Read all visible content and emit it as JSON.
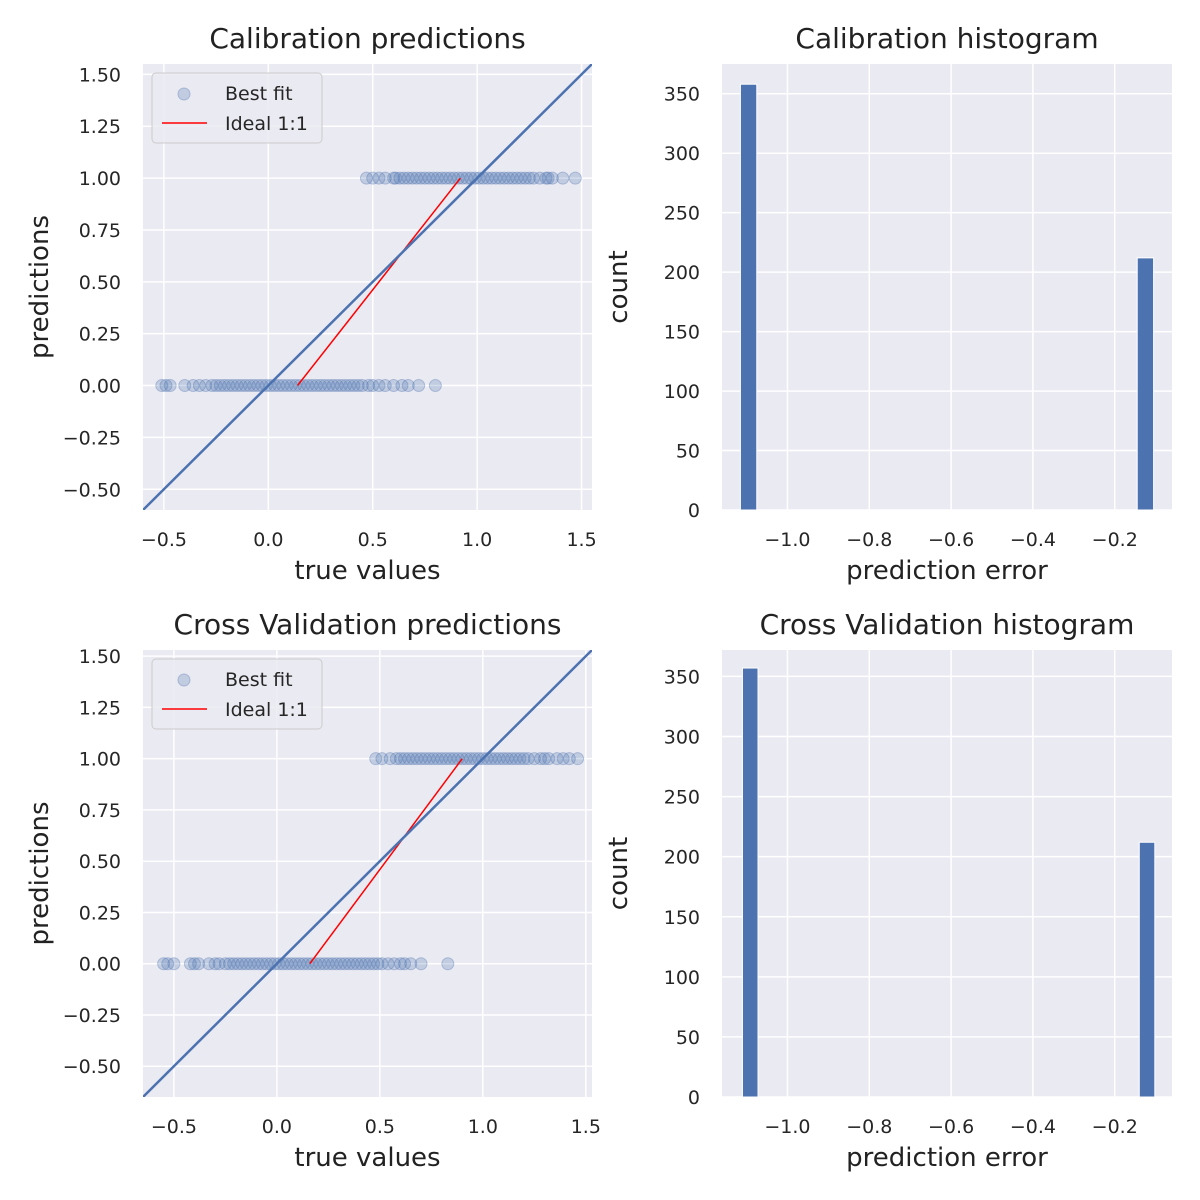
{
  "chart_data": [
    {
      "type": "scatter",
      "title": "Calibration predictions",
      "xlabel": "true values",
      "ylabel": "predictions",
      "xlim": [
        -0.6,
        1.55
      ],
      "ylim": [
        -0.6,
        1.55
      ],
      "xticks": [
        -0.5,
        0.0,
        0.5,
        1.0,
        1.5
      ],
      "yticks": [
        -0.5,
        -0.25,
        0.0,
        0.25,
        0.5,
        0.75,
        1.0,
        1.25,
        1.5
      ],
      "xtick_labels": [
        "−0.5",
        "0.0",
        "0.5",
        "1.0",
        "1.5"
      ],
      "ytick_labels": [
        "−0.50",
        "−0.25",
        "0.00",
        "0.25",
        "0.50",
        "0.75",
        "1.00",
        "1.25",
        "1.50"
      ],
      "grid": true,
      "legend": {
        "placement": "top-left",
        "entries": [
          "Best fit",
          "Ideal 1:1"
        ]
      },
      "series": [
        {
          "name": "Best fit",
          "kind": "scatter",
          "color": "#4c72b0",
          "x": [
            -0.51,
            -0.49,
            -0.47,
            -0.4,
            -0.36,
            -0.33,
            -0.3,
            -0.27,
            -0.25,
            -0.23,
            -0.21,
            -0.19,
            -0.17,
            -0.15,
            -0.13,
            -0.11,
            -0.09,
            -0.07,
            -0.05,
            -0.03,
            -0.01,
            0.01,
            0.03,
            0.05,
            0.07,
            0.09,
            0.11,
            0.13,
            0.15,
            0.17,
            0.19,
            0.21,
            0.23,
            0.25,
            0.27,
            0.29,
            0.31,
            0.33,
            0.35,
            0.37,
            0.39,
            0.41,
            0.43,
            0.45,
            0.48,
            0.5,
            0.53,
            0.56,
            0.6,
            0.64,
            0.67,
            0.72,
            0.8,
            0.47,
            0.5,
            0.53,
            0.56,
            0.6,
            0.61,
            0.63,
            0.65,
            0.67,
            0.69,
            0.71,
            0.73,
            0.75,
            0.77,
            0.79,
            0.81,
            0.83,
            0.85,
            0.87,
            0.89,
            0.91,
            0.93,
            0.95,
            0.97,
            0.99,
            1.01,
            1.03,
            1.05,
            1.07,
            1.09,
            1.11,
            1.13,
            1.15,
            1.17,
            1.19,
            1.21,
            1.23,
            1.25,
            1.27,
            1.3,
            1.33,
            1.34,
            1.36,
            1.41,
            1.47
          ],
          "y": [
            0,
            0,
            0,
            0,
            0,
            0,
            0,
            0,
            0,
            0,
            0,
            0,
            0,
            0,
            0,
            0,
            0,
            0,
            0,
            0,
            0,
            0,
            0,
            0,
            0,
            0,
            0,
            0,
            0,
            0,
            0,
            0,
            0,
            0,
            0,
            0,
            0,
            0,
            0,
            0,
            0,
            0,
            0,
            0,
            0,
            0,
            0,
            0,
            0,
            0,
            0,
            0,
            0,
            1,
            1,
            1,
            1,
            1,
            1,
            1,
            1,
            1,
            1,
            1,
            1,
            1,
            1,
            1,
            1,
            1,
            1,
            1,
            1,
            1,
            1,
            1,
            1,
            1,
            1,
            1,
            1,
            1,
            1,
            1,
            1,
            1,
            1,
            1,
            1,
            1,
            1,
            1,
            1,
            1,
            1,
            1,
            1,
            1
          ]
        },
        {
          "name": "Ideal 1:1",
          "kind": "line",
          "color": "#ff0000",
          "x": [
            0.14,
            0.92
          ],
          "y": [
            0.0,
            1.0
          ]
        },
        {
          "kind": "line",
          "color": "#4c72b0",
          "x": [
            -0.6,
            1.55
          ],
          "y": [
            -0.6,
            1.55
          ]
        }
      ]
    },
    {
      "type": "bar",
      "title": "Calibration histogram",
      "xlabel": "prediction error",
      "ylabel": "count",
      "xlim": [
        -1.16,
        -0.06
      ],
      "ylim": [
        0,
        375
      ],
      "xticks": [
        -1.0,
        -0.8,
        -0.6,
        -0.4,
        -0.2
      ],
      "yticks": [
        0,
        50,
        100,
        150,
        200,
        250,
        300,
        350
      ],
      "xtick_labels": [
        "−1.0",
        "−0.8",
        "−0.6",
        "−0.4",
        "−0.2"
      ],
      "ytick_labels": [
        "0",
        "50",
        "100",
        "150",
        "200",
        "250",
        "300",
        "350"
      ],
      "grid": true,
      "color": "#4c72b0",
      "bars": [
        {
          "x0": -1.115,
          "x1": -1.075,
          "value": 358
        },
        {
          "x0": -0.145,
          "x1": -0.105,
          "value": 212
        }
      ]
    },
    {
      "type": "scatter",
      "title": "Cross Validation predictions",
      "xlabel": "true values",
      "ylabel": "predictions",
      "xlim": [
        -0.65,
        1.53
      ],
      "ylim": [
        -0.65,
        1.53
      ],
      "xticks": [
        -0.5,
        0.0,
        0.5,
        1.0,
        1.5
      ],
      "yticks": [
        -0.5,
        -0.25,
        0.0,
        0.25,
        0.5,
        0.75,
        1.0,
        1.25,
        1.5
      ],
      "xtick_labels": [
        "−0.5",
        "0.0",
        "0.5",
        "1.0",
        "1.5"
      ],
      "ytick_labels": [
        "−0.50",
        "−0.25",
        "0.00",
        "0.25",
        "0.50",
        "0.75",
        "1.00",
        "1.25",
        "1.50"
      ],
      "grid": true,
      "legend": {
        "placement": "top-left",
        "entries": [
          "Best fit",
          "Ideal 1:1"
        ]
      },
      "series": [
        {
          "name": "Best fit",
          "kind": "scatter",
          "color": "#4c72b0",
          "x": [
            -0.55,
            -0.53,
            -0.5,
            -0.42,
            -0.4,
            -0.38,
            -0.33,
            -0.3,
            -0.28,
            -0.25,
            -0.23,
            -0.21,
            -0.19,
            -0.17,
            -0.15,
            -0.13,
            -0.11,
            -0.09,
            -0.07,
            -0.05,
            -0.03,
            -0.01,
            0.01,
            0.03,
            0.05,
            0.07,
            0.09,
            0.11,
            0.13,
            0.15,
            0.17,
            0.19,
            0.21,
            0.23,
            0.25,
            0.27,
            0.29,
            0.31,
            0.33,
            0.35,
            0.37,
            0.39,
            0.41,
            0.43,
            0.45,
            0.47,
            0.49,
            0.51,
            0.54,
            0.57,
            0.6,
            0.62,
            0.65,
            0.7,
            0.83,
            0.48,
            0.51,
            0.55,
            0.58,
            0.6,
            0.62,
            0.64,
            0.66,
            0.68,
            0.7,
            0.72,
            0.74,
            0.76,
            0.78,
            0.8,
            0.82,
            0.84,
            0.86,
            0.88,
            0.9,
            0.92,
            0.94,
            0.96,
            0.98,
            1.0,
            1.02,
            1.04,
            1.06,
            1.08,
            1.1,
            1.12,
            1.14,
            1.16,
            1.18,
            1.2,
            1.22,
            1.25,
            1.28,
            1.3,
            1.32,
            1.36,
            1.39,
            1.42,
            1.46
          ],
          "y": [
            0,
            0,
            0,
            0,
            0,
            0,
            0,
            0,
            0,
            0,
            0,
            0,
            0,
            0,
            0,
            0,
            0,
            0,
            0,
            0,
            0,
            0,
            0,
            0,
            0,
            0,
            0,
            0,
            0,
            0,
            0,
            0,
            0,
            0,
            0,
            0,
            0,
            0,
            0,
            0,
            0,
            0,
            0,
            0,
            0,
            0,
            0,
            0,
            0,
            0,
            0,
            0,
            0,
            0,
            0,
            1,
            1,
            1,
            1,
            1,
            1,
            1,
            1,
            1,
            1,
            1,
            1,
            1,
            1,
            1,
            1,
            1,
            1,
            1,
            1,
            1,
            1,
            1,
            1,
            1,
            1,
            1,
            1,
            1,
            1,
            1,
            1,
            1,
            1,
            1,
            1,
            1,
            1,
            1,
            1,
            1,
            1,
            1,
            1
          ]
        },
        {
          "name": "Ideal 1:1",
          "kind": "line",
          "color": "#ff0000",
          "x": [
            0.16,
            0.9
          ],
          "y": [
            0.0,
            1.0
          ]
        },
        {
          "kind": "line",
          "color": "#4c72b0",
          "x": [
            -0.65,
            1.53
          ],
          "y": [
            -0.65,
            1.53
          ]
        }
      ]
    },
    {
      "type": "bar",
      "title": "Cross Validation histogram",
      "xlabel": "prediction error",
      "ylabel": "count",
      "xlim": [
        -1.16,
        -0.06
      ],
      "ylim": [
        0,
        372
      ],
      "xticks": [
        -1.0,
        -0.8,
        -0.6,
        -0.4,
        -0.2
      ],
      "yticks": [
        0,
        50,
        100,
        150,
        200,
        250,
        300,
        350
      ],
      "xtick_labels": [
        "−1.0",
        "−0.8",
        "−0.6",
        "−0.4",
        "−0.2"
      ],
      "ytick_labels": [
        "0",
        "50",
        "100",
        "150",
        "200",
        "250",
        "300",
        "350"
      ],
      "grid": true,
      "color": "#4c72b0",
      "bars": [
        {
          "x0": -1.11,
          "x1": -1.072,
          "value": 357
        },
        {
          "x0": -0.14,
          "x1": -0.102,
          "value": 212
        }
      ]
    }
  ]
}
